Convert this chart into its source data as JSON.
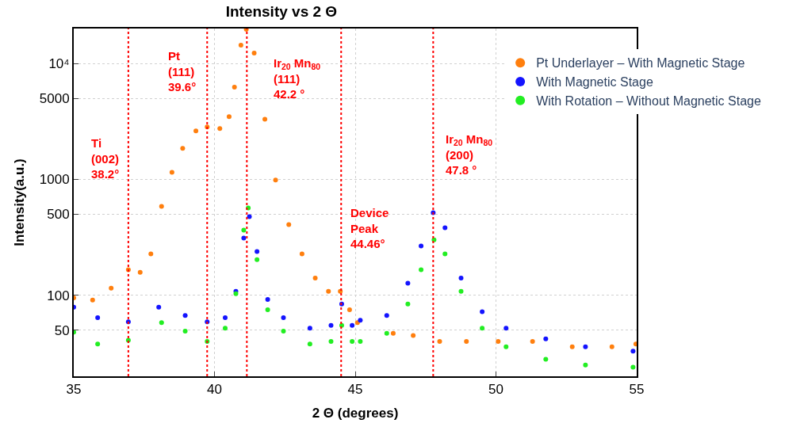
{
  "chart_data": {
    "type": "scatter",
    "title": "Intensity vs 2 Θ",
    "xlabel": "2 Θ (degrees)",
    "ylabel": "Intensity(a.u.)",
    "xlim": [
      35,
      55
    ],
    "xticks": [
      35,
      40,
      45,
      50,
      55
    ],
    "ylim": [
      20,
      20000
    ],
    "yticks": [
      50,
      100,
      500,
      1000,
      5000,
      {
        "value": 10000,
        "label": "10⁴"
      }
    ],
    "log": "y",
    "grid": true,
    "legend": "top right",
    "marker": "circle",
    "series": [
      {
        "name": "Pt Underlayer – With Magnetic Stage",
        "color": "#ff7f0e",
        "x": [
          35.0,
          35.67,
          36.33,
          36.94,
          37.36,
          37.74,
          38.12,
          38.49,
          38.87,
          39.34,
          39.74,
          40.19,
          40.52,
          40.71,
          40.94,
          41.13,
          41.41,
          41.79,
          42.17,
          42.64,
          43.11,
          43.58,
          44.05,
          44.47,
          44.8,
          45.08,
          46.35,
          47.06,
          48.0,
          48.95,
          50.08,
          51.3,
          52.71,
          54.12,
          54.97
        ],
        "values": [
          95,
          91,
          115,
          166,
          158,
          227,
          585,
          1150,
          1850,
          2620,
          2830,
          2740,
          3480,
          6240,
          14400,
          19700,
          12300,
          3300,
          985,
          407,
          227,
          141,
          108,
          108,
          75,
          58,
          47,
          45,
          40,
          40,
          40,
          40,
          36,
          36,
          38
        ]
      },
      {
        "name": "With Magnetic Stage",
        "color": "#1414ff",
        "x": [
          35.0,
          35.85,
          36.94,
          38.02,
          38.96,
          39.74,
          40.38,
          40.76,
          41.04,
          41.24,
          41.51,
          41.89,
          42.45,
          43.39,
          44.14,
          44.52,
          44.89,
          45.18,
          46.12,
          46.87,
          47.34,
          47.77,
          48.19,
          48.76,
          49.51,
          50.36,
          51.77,
          53.18,
          54.87
        ],
        "values": [
          79,
          64,
          59,
          79,
          67,
          59,
          64,
          108,
          311,
          476,
          238,
          92,
          64,
          52,
          55,
          84,
          55,
          61,
          67,
          127,
          266,
          515,
          382,
          141,
          72,
          52,
          42,
          36,
          33
        ]
      },
      {
        "name": "With Rotation – Without Magnetic Stage",
        "color": "#22ee22",
        "x": [
          35.0,
          35.85,
          36.94,
          38.12,
          38.96,
          39.74,
          40.38,
          40.76,
          41.04,
          41.2,
          41.51,
          41.89,
          42.45,
          43.39,
          44.14,
          44.52,
          44.89,
          45.18,
          46.12,
          46.87,
          47.34,
          47.8,
          48.19,
          48.76,
          49.51,
          50.36,
          51.77,
          53.18,
          54.87
        ],
        "values": [
          48,
          38,
          41,
          58,
          49,
          40,
          52,
          103,
          365,
          566,
          203,
          75,
          49,
          38,
          40,
          55,
          40,
          40,
          47,
          84,
          166,
          301,
          227,
          108,
          52,
          36,
          28,
          25,
          24
        ]
      }
    ],
    "ref_lines": [
      {
        "axis": "x",
        "value": 36.94,
        "color": "#ff0000",
        "line_style": "dotted"
      },
      {
        "axis": "x",
        "value": 39.74,
        "color": "#ff0000",
        "line_style": "dotted"
      },
      {
        "axis": "x",
        "value": 41.15,
        "color": "#ff0000",
        "line_style": "dotted"
      },
      {
        "axis": "x",
        "value": 44.5,
        "color": "#ff0000",
        "line_style": "dotted"
      },
      {
        "axis": "x",
        "value": 47.77,
        "color": "#ff0000",
        "line_style": "dotted"
      }
    ],
    "annotations": [
      "Ti\n(002)\n38.2°",
      "Pt\n(111)\n39.6°",
      "Ir$_{20}$ Mn$_{80}$\n(111)\n42.2 °",
      "Device\nPeak\n44.46°",
      "Ir$_{20}$ Mn$_{80}$\n(200)\n47.8 °"
    ]
  }
}
